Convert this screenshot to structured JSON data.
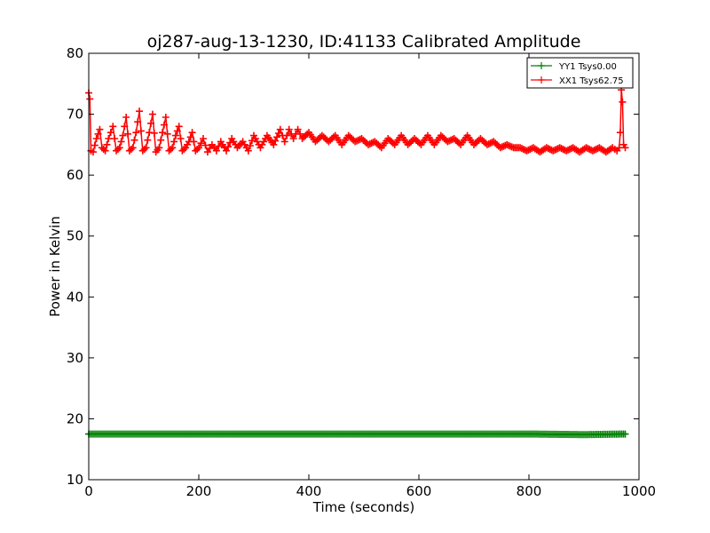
{
  "chart_data": {
    "type": "line",
    "title": "oj287-aug-13-1230, ID:41133 Calibrated Amplitude",
    "xlabel": "Time (seconds)",
    "ylabel": "Power in Kelvin",
    "xlim": [
      0,
      1000
    ],
    "ylim": [
      10,
      80
    ],
    "xticks": [
      "0",
      "200",
      "400",
      "600",
      "800",
      "1000"
    ],
    "yticks": [
      "10",
      "20",
      "30",
      "40",
      "50",
      "60",
      "70",
      "80"
    ],
    "grid": false,
    "legend_position": "top-right",
    "marker": "+",
    "series": [
      {
        "name": "YY1 Tsys0.00",
        "color": "#008000",
        "x": [
          0,
          100,
          200,
          300,
          400,
          500,
          600,
          700,
          800,
          900,
          975
        ],
        "y": [
          17.5,
          17.5,
          17.5,
          17.5,
          17.5,
          17.5,
          17.5,
          17.5,
          17.5,
          17.4,
          17.5
        ]
      },
      {
        "name": "XX1 Tsys62.75",
        "color": "#ff0000",
        "x": [
          0,
          2,
          4,
          8,
          14,
          20,
          24,
          30,
          36,
          44,
          50,
          56,
          62,
          68,
          74,
          80,
          86,
          92,
          98,
          104,
          110,
          116,
          122,
          128,
          134,
          140,
          146,
          152,
          158,
          164,
          170,
          176,
          182,
          188,
          194,
          200,
          208,
          216,
          224,
          232,
          240,
          250,
          260,
          270,
          280,
          290,
          300,
          312,
          324,
          336,
          348,
          356,
          364,
          372,
          380,
          388,
          400,
          412,
          424,
          436,
          448,
          460,
          472,
          484,
          496,
          508,
          520,
          532,
          544,
          556,
          568,
          580,
          592,
          604,
          616,
          628,
          640,
          652,
          664,
          676,
          688,
          700,
          712,
          724,
          736,
          748,
          760,
          772,
          784,
          796,
          808,
          820,
          832,
          844,
          856,
          868,
          880,
          892,
          904,
          916,
          928,
          940,
          952,
          960,
          964,
          966,
          968,
          970,
          972,
          975
        ],
        "y": [
          73.5,
          72.5,
          64,
          63.8,
          66,
          67.5,
          64.5,
          64,
          66,
          68,
          64,
          64.5,
          66.5,
          69.5,
          64,
          64.5,
          67,
          70.5,
          64,
          64.5,
          67,
          70,
          63.8,
          64.5,
          67,
          69.5,
          64,
          64.5,
          66.5,
          68,
          64,
          64.5,
          65.5,
          67,
          64,
          64.5,
          66,
          63.8,
          65,
          64,
          65.5,
          64,
          66,
          64.5,
          65.5,
          64,
          66.5,
          64.5,
          66.5,
          65,
          67.5,
          65.5,
          67.5,
          66,
          67.5,
          66,
          67,
          65.5,
          66.5,
          65.5,
          66.5,
          65,
          66.5,
          65.5,
          66,
          65,
          65.5,
          64.5,
          66,
          65,
          66.5,
          65,
          66,
          65,
          66.5,
          65,
          66.5,
          65.5,
          66,
          65,
          66.5,
          65,
          66,
          65,
          65.5,
          64.5,
          65,
          64.5,
          64.5,
          64,
          64.5,
          63.8,
          64.5,
          64,
          64.5,
          64,
          64.5,
          63.8,
          64.5,
          64,
          64.5,
          63.8,
          64.5,
          64,
          64.5,
          67,
          74,
          72,
          65,
          64.5
        ]
      }
    ]
  }
}
